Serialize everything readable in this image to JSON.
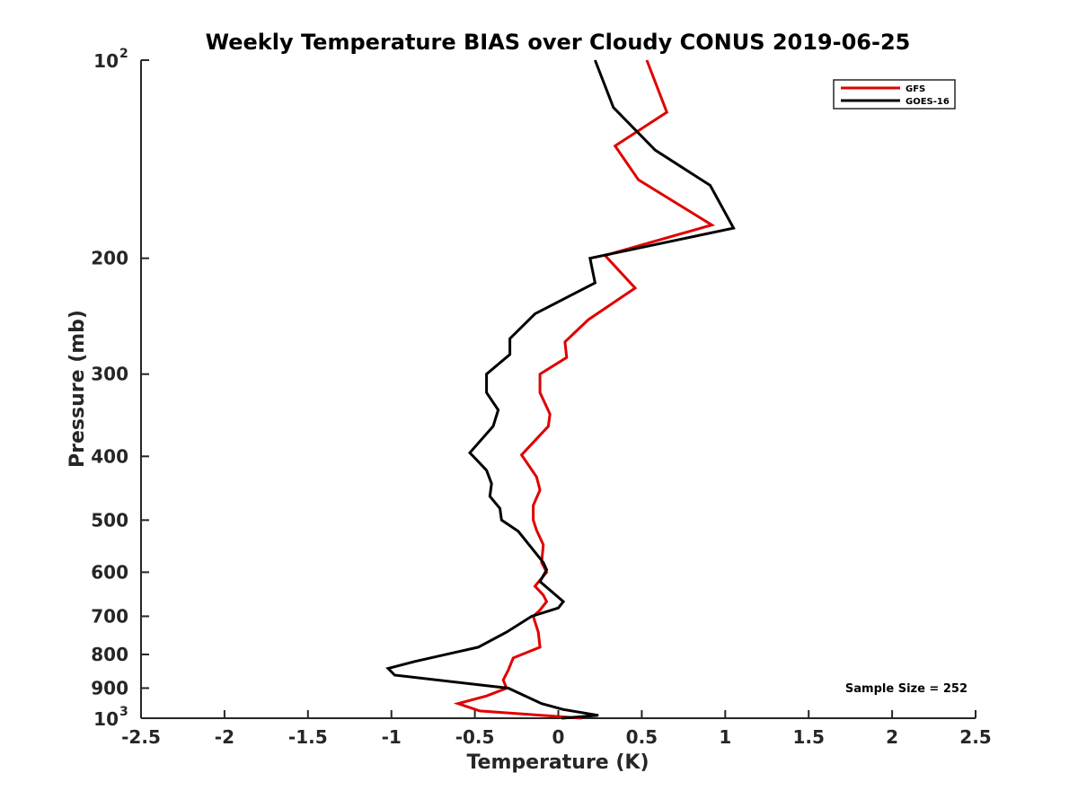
{
  "chart_data": {
    "type": "line",
    "title": "Weekly Temperature BIAS over Cloudy CONUS 2019-06-25",
    "xlabel": "Temperature (K)",
    "ylabel": "Pressure (mb)",
    "xlim": [
      -2.5,
      2.5
    ],
    "ylim": [
      100,
      1000
    ],
    "y_scale": "log",
    "y_reversed": true,
    "x_ticks": [
      -2.5,
      -2,
      -1.5,
      -1,
      -0.5,
      0,
      0.5,
      1,
      1.5,
      2,
      2.5
    ],
    "x_tick_labels": [
      "-2.5",
      "-2",
      "-1.5",
      "-1",
      "-0.5",
      "0",
      "0.5",
      "1",
      "1.5",
      "2",
      "2.5"
    ],
    "y_ticks": [
      {
        "value": 100,
        "label": "10",
        "exp": "2"
      },
      {
        "value": 200,
        "label": "200"
      },
      {
        "value": 300,
        "label": "300"
      },
      {
        "value": 400,
        "label": "400"
      },
      {
        "value": 500,
        "label": "500"
      },
      {
        "value": 600,
        "label": "600"
      },
      {
        "value": 700,
        "label": "700"
      },
      {
        "value": 800,
        "label": "800"
      },
      {
        "value": 900,
        "label": "900"
      },
      {
        "value": 1000,
        "label": "10",
        "exp": "3"
      }
    ],
    "grid": false,
    "legend_position": "top-right",
    "annotation": "Sample Size = 252",
    "series": [
      {
        "name": "GFS",
        "color": "#e00000",
        "points": [
          [
            0.53,
            100
          ],
          [
            0.65,
            120
          ],
          [
            0.34,
            135
          ],
          [
            0.48,
            152
          ],
          [
            0.92,
            178
          ],
          [
            0.28,
            198
          ],
          [
            0.46,
            222
          ],
          [
            0.18,
            248
          ],
          [
            0.04,
            268
          ],
          [
            0.05,
            283
          ],
          [
            -0.11,
            300
          ],
          [
            -0.11,
            320
          ],
          [
            -0.05,
            345
          ],
          [
            -0.06,
            360
          ],
          [
            -0.22,
            398
          ],
          [
            -0.13,
            430
          ],
          [
            -0.11,
            450
          ],
          [
            -0.15,
            475
          ],
          [
            -0.15,
            500
          ],
          [
            -0.13,
            518
          ],
          [
            -0.09,
            545
          ],
          [
            -0.1,
            580
          ],
          [
            -0.07,
            600
          ],
          [
            -0.14,
            630
          ],
          [
            -0.09,
            650
          ],
          [
            -0.07,
            665
          ],
          [
            -0.11,
            685
          ],
          [
            -0.15,
            700
          ],
          [
            -0.12,
            740
          ],
          [
            -0.11,
            780
          ],
          [
            -0.27,
            810
          ],
          [
            -0.3,
            845
          ],
          [
            -0.33,
            875
          ],
          [
            -0.31,
            900
          ],
          [
            -0.43,
            925
          ],
          [
            -0.6,
            950
          ],
          [
            -0.47,
            975
          ],
          [
            0.14,
            1000
          ]
        ]
      },
      {
        "name": "GOES-16",
        "color": "#000000",
        "points": [
          [
            0.22,
            100
          ],
          [
            0.33,
            118
          ],
          [
            0.58,
            137
          ],
          [
            0.91,
            155
          ],
          [
            1.05,
            180
          ],
          [
            0.19,
            200
          ],
          [
            0.22,
            218
          ],
          [
            -0.14,
            243
          ],
          [
            -0.29,
            265
          ],
          [
            -0.29,
            280
          ],
          [
            -0.43,
            300
          ],
          [
            -0.43,
            320
          ],
          [
            -0.36,
            340
          ],
          [
            -0.39,
            360
          ],
          [
            -0.53,
            395
          ],
          [
            -0.43,
            420
          ],
          [
            -0.4,
            440
          ],
          [
            -0.41,
            460
          ],
          [
            -0.35,
            480
          ],
          [
            -0.34,
            500
          ],
          [
            -0.24,
            520
          ],
          [
            -0.09,
            580
          ],
          [
            -0.07,
            595
          ],
          [
            -0.11,
            620
          ],
          [
            0.03,
            665
          ],
          [
            0.0,
            680
          ],
          [
            -0.16,
            700
          ],
          [
            -0.31,
            740
          ],
          [
            -0.48,
            780
          ],
          [
            -0.86,
            820
          ],
          [
            -1.02,
            840
          ],
          [
            -0.98,
            860
          ],
          [
            -0.3,
            900
          ],
          [
            -0.1,
            950
          ],
          [
            0.03,
            970
          ],
          [
            0.24,
            990
          ],
          [
            0.02,
            1000
          ]
        ]
      }
    ]
  }
}
